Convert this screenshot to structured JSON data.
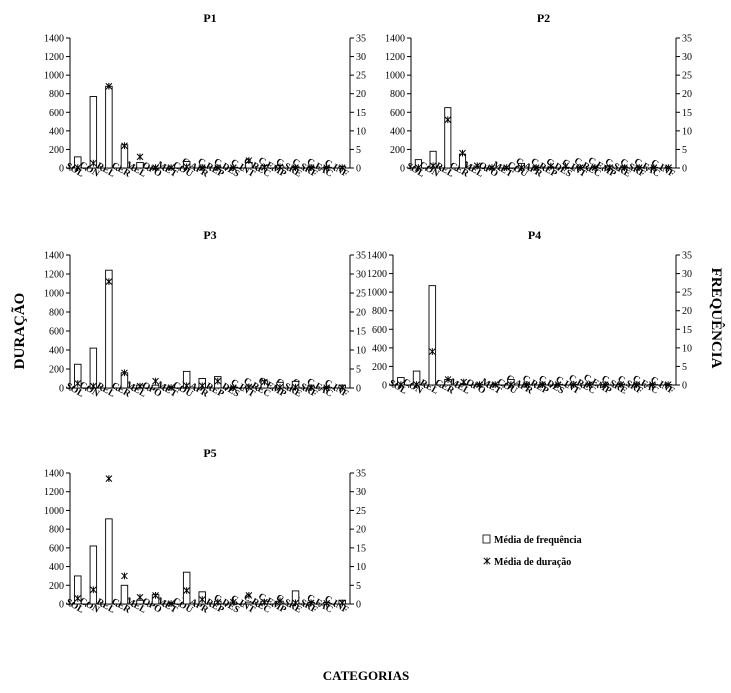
{
  "chart_data": [
    {
      "type": "bar",
      "title": "P1",
      "categories": [
        "SOL",
        "CON",
        "REL",
        "CER",
        "MEL",
        "OPO",
        "MET",
        "COU",
        "C.APR",
        "C.REP",
        "C.DES",
        "C.INT",
        "C.REC",
        "C.EMP",
        "C.SRE",
        "C.SRF",
        "C.FAC",
        "C.INF"
      ],
      "ylim": [
        0,
        1400
      ],
      "y2lim": [
        0,
        35
      ],
      "series": [
        {
          "name": "Média de frequência",
          "kind": "bar",
          "axis": "left",
          "values": [
            120,
            770,
            880,
            250,
            60,
            0,
            0,
            70,
            10,
            5,
            5,
            60,
            25,
            25,
            10,
            10,
            10,
            15
          ]
        },
        {
          "name": "Média de duração",
          "kind": "marker",
          "axis": "right",
          "values": [
            0.1,
            1.3,
            22,
            6,
            3,
            0.1,
            0.1,
            0.3,
            0.1,
            0.1,
            0.1,
            2,
            0.2,
            0.3,
            0.1,
            0.1,
            0.1,
            0.1
          ]
        }
      ]
    },
    {
      "type": "bar",
      "title": "P2",
      "categories": [
        "SOL",
        "CON",
        "REL",
        "CER",
        "MEL",
        "OPO",
        "MET",
        "COU",
        "C.APR",
        "C.REP",
        "C.DES",
        "C.INT",
        "C.REC",
        "C.EMP",
        "C.SRE",
        "C.SRF",
        "C.FAC",
        "C.INF"
      ],
      "ylim": [
        0,
        1400
      ],
      "y2lim": [
        0,
        35
      ],
      "series": [
        {
          "name": "Média de frequência",
          "kind": "bar",
          "axis": "left",
          "values": [
            90,
            180,
            650,
            150,
            20,
            0,
            0,
            50,
            10,
            10,
            5,
            5,
            5,
            20,
            5,
            5,
            5,
            5
          ]
        },
        {
          "name": "Média de duração",
          "kind": "marker",
          "axis": "right",
          "values": [
            0.1,
            0.6,
            13,
            4,
            0.6,
            0.1,
            0.1,
            0.1,
            0.1,
            0.5,
            0.5,
            0.1,
            0.1,
            0.1,
            0.1,
            0.1,
            0.1,
            0.1
          ]
        }
      ]
    },
    {
      "type": "bar",
      "title": "P3",
      "categories": [
        "SOL",
        "CON",
        "REL",
        "CER",
        "MEL",
        "OPO",
        "MET",
        "COU",
        "C.APR",
        "C.REP",
        "C.DES",
        "C.INT",
        "C.REC",
        "C.EMP",
        "C.SRE",
        "C.SRF",
        "C.FAC",
        "C.INF"
      ],
      "ylim": [
        0,
        1400
      ],
      "y2lim": [
        0,
        35
      ],
      "series": [
        {
          "name": "Média de frequência",
          "kind": "bar",
          "axis": "left",
          "values": [
            250,
            420,
            1240,
            160,
            30,
            30,
            10,
            175,
            100,
            120,
            10,
            20,
            75,
            60,
            70,
            20,
            10,
            30
          ]
        },
        {
          "name": "Média de duração",
          "kind": "marker",
          "axis": "right",
          "values": [
            1.2,
            0.5,
            28,
            4,
            0.5,
            1.8,
            0.1,
            0.6,
            0.6,
            1.8,
            0.1,
            0.3,
            1.6,
            0.2,
            0.2,
            0.1,
            0.1,
            0.1
          ]
        }
      ]
    },
    {
      "type": "bar",
      "title": "P4",
      "categories": [
        "SOL",
        "CON",
        "REL",
        "CER",
        "MEL",
        "OPO",
        "MET",
        "COU",
        "C.APR",
        "C.REP",
        "C.DES",
        "C.INT",
        "C.REC",
        "C.EMP",
        "C.SRE",
        "C.SRF",
        "C.FAC",
        "C.INF"
      ],
      "ylim": [
        0,
        1400
      ],
      "y2lim": [
        0,
        35
      ],
      "series": [
        {
          "name": "Média de frequência",
          "kind": "bar",
          "axis": "left",
          "values": [
            80,
            150,
            1070,
            60,
            10,
            5,
            5,
            60,
            5,
            5,
            5,
            5,
            5,
            5,
            5,
            5,
            5,
            5
          ]
        },
        {
          "name": "Média de duração",
          "kind": "marker",
          "axis": "right",
          "values": [
            0.1,
            0.1,
            9,
            1.5,
            0.8,
            0.1,
            0.1,
            0.1,
            0.1,
            0.1,
            0.1,
            0.1,
            0.1,
            0.1,
            0.1,
            0.1,
            0.1,
            0.1
          ]
        }
      ]
    },
    {
      "type": "bar",
      "title": "P5",
      "categories": [
        "SOL",
        "CON",
        "REL",
        "CER",
        "MEL",
        "OPO",
        "MET",
        "COU",
        "C.APR",
        "C.REP",
        "C.DES",
        "C.INT",
        "C.REC",
        "C.EMP",
        "C.SRE",
        "C.SRF",
        "C.FAC",
        "C.INF"
      ],
      "ylim": [
        0,
        1400
      ],
      "y2lim": [
        0,
        35
      ],
      "series": [
        {
          "name": "Média de frequência",
          "kind": "bar",
          "axis": "left",
          "values": [
            300,
            620,
            910,
            200,
            40,
            100,
            10,
            340,
            130,
            30,
            20,
            20,
            30,
            30,
            140,
            15,
            15,
            40
          ]
        },
        {
          "name": "Média de duração",
          "kind": "marker",
          "axis": "right",
          "values": [
            1.5,
            3.8,
            33.5,
            7.5,
            1.8,
            2.3,
            0.1,
            3.6,
            1.2,
            0.5,
            0.5,
            2.3,
            0.5,
            0.8,
            0.3,
            0.3,
            0.2,
            0.3
          ]
        }
      ]
    }
  ],
  "yTicks": [
    "0",
    "200",
    "400",
    "600",
    "800",
    "1000",
    "1200",
    "1400"
  ],
  "y2Ticks": [
    "0",
    "5",
    "10",
    "15",
    "20",
    "25",
    "30",
    "35"
  ],
  "ylabel": "DURAÇÃO",
  "y2label": "FREQUÊNCIA",
  "xlabel": "CATEGORIAS",
  "legend": {
    "bar_label": "Média de frequência",
    "marker_label": "Média de duração",
    "position": "lower-right"
  },
  "colors": {
    "bar_fill": "#ffffff",
    "stroke": "#000000"
  }
}
